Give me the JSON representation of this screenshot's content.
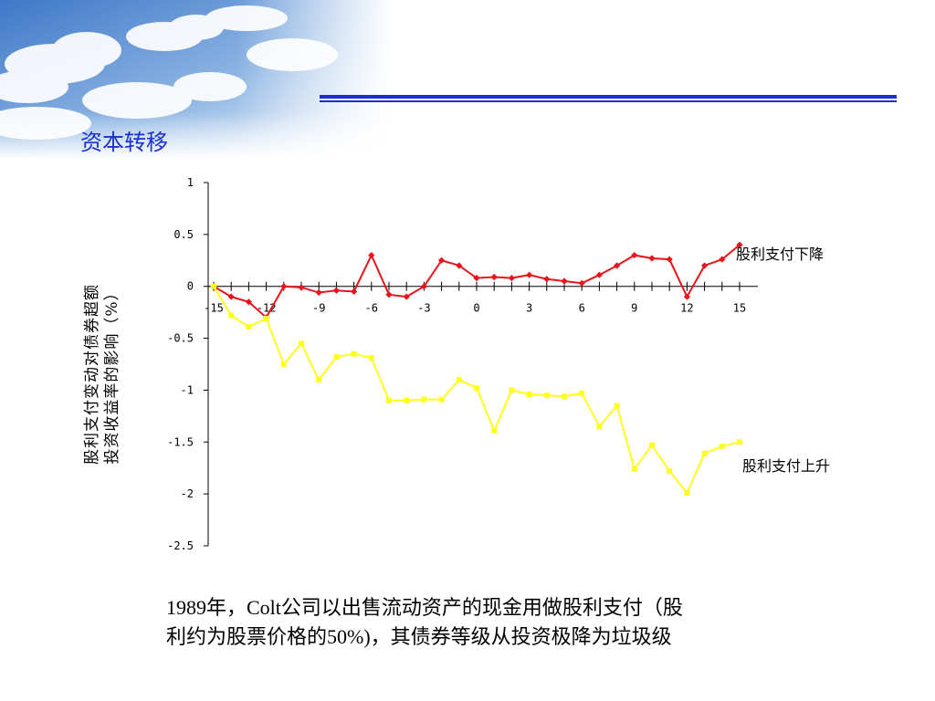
{
  "slide": {
    "title": "资本转移",
    "caption_line1": "1989年，Colt公司以出售流动资产的现金用做股利支付（股",
    "caption_line2": "利约为股票价格的50%)，其债券等级从投资极降为垃圾级"
  },
  "colors": {
    "title": "#1a2fd0",
    "rule": "#1a2fd0",
    "decrease_series": "#e8141c",
    "increase_series": "#ffff1e"
  },
  "chart_data": {
    "type": "line",
    "ylabel_line1": "股利支付变动对债券超额",
    "ylabel_line2": "投资收益率的影响（%）",
    "xlabel": "",
    "x_ticks": [
      "-15",
      "-12",
      "-9",
      "-6",
      "-3",
      "0",
      "3",
      "6",
      "9",
      "12",
      "15"
    ],
    "y_ticks": [
      "1",
      "0.5",
      "0",
      "-0.5",
      "-1",
      "-1.5",
      "-2",
      "-2.5"
    ],
    "xlim": [
      -15,
      15
    ],
    "ylim": [
      -2.5,
      1
    ],
    "x": [
      -15,
      -14,
      -13,
      -12,
      -11,
      -10,
      -9,
      -8,
      -7,
      -6,
      -5,
      -4,
      -3,
      -2,
      -1,
      0,
      1,
      2,
      3,
      4,
      5,
      6,
      7,
      8,
      9,
      10,
      11,
      12,
      13,
      14,
      15
    ],
    "series": [
      {
        "name": "股利支付下降",
        "values": [
          0.0,
          -0.1,
          -0.15,
          -0.3,
          0.0,
          -0.01,
          -0.06,
          -0.04,
          -0.05,
          0.3,
          -0.08,
          -0.1,
          0.0,
          0.25,
          0.2,
          0.08,
          0.09,
          0.08,
          0.11,
          0.07,
          0.05,
          0.03,
          0.11,
          0.2,
          0.3,
          0.27,
          0.26,
          -0.1,
          0.2,
          0.26,
          0.4
        ]
      },
      {
        "name": "股利支付上升",
        "values": [
          0.0,
          -0.28,
          -0.39,
          -0.31,
          -0.75,
          -0.55,
          -0.9,
          -0.68,
          -0.65,
          -0.69,
          -1.1,
          -1.1,
          -1.09,
          -1.09,
          -0.9,
          -0.98,
          -1.39,
          -1.0,
          -1.04,
          -1.05,
          -1.06,
          -1.03,
          -1.35,
          -1.15,
          -1.76,
          -1.53,
          -1.78,
          -1.99,
          -1.61,
          -1.54,
          -1.5
        ]
      }
    ]
  }
}
